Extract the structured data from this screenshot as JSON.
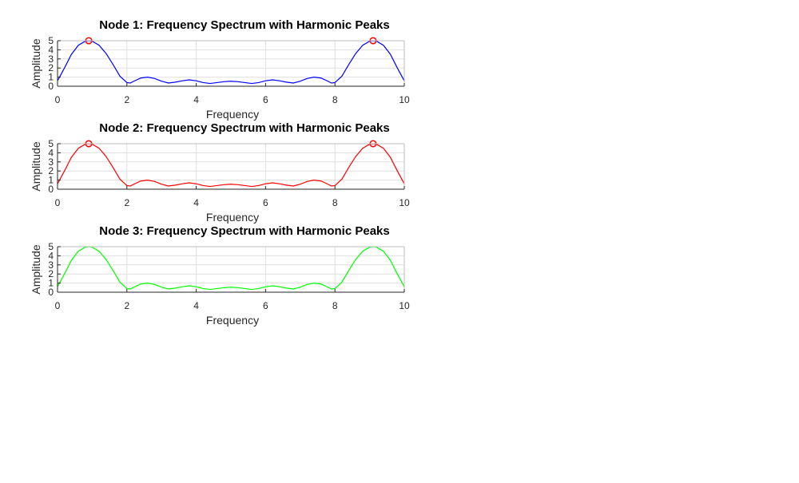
{
  "chart_data": [
    {
      "type": "line",
      "title": "Node 1: Frequency Spectrum with Harmonic Peaks",
      "xlabel": "Frequency",
      "ylabel": "Amplitude",
      "xlim": [
        0,
        10
      ],
      "ylim": [
        0,
        5
      ],
      "xticks": [
        "0",
        "2",
        "4",
        "6",
        "8",
        "10"
      ],
      "yticks": [
        "0",
        "1",
        "2",
        "3",
        "4",
        "5"
      ],
      "grid": true,
      "series": [
        {
          "color": "#0000ff",
          "x": [
            0,
            0.2,
            0.4,
            0.6,
            0.8,
            0.9,
            1.0,
            1.2,
            1.4,
            1.6,
            1.8,
            2.0,
            2.1,
            2.2,
            2.4,
            2.6,
            2.8,
            3.0,
            3.2,
            3.4,
            3.6,
            3.8,
            4.0,
            4.2,
            4.4,
            4.6,
            4.8,
            5.0,
            5.2,
            5.4,
            5.6,
            5.8,
            6.0,
            6.2,
            6.4,
            6.6,
            6.8,
            7.0,
            7.2,
            7.4,
            7.6,
            7.8,
            7.9,
            8.0,
            8.2,
            8.4,
            8.6,
            8.8,
            9.0,
            9.1,
            9.2,
            9.4,
            9.6,
            9.8,
            10.0
          ],
          "y": [
            0.6,
            2.0,
            3.5,
            4.5,
            4.95,
            5.0,
            4.95,
            4.5,
            3.6,
            2.4,
            1.1,
            0.4,
            0.35,
            0.55,
            0.9,
            1.0,
            0.85,
            0.55,
            0.35,
            0.45,
            0.6,
            0.7,
            0.6,
            0.4,
            0.3,
            0.4,
            0.5,
            0.55,
            0.5,
            0.4,
            0.3,
            0.4,
            0.6,
            0.7,
            0.6,
            0.45,
            0.35,
            0.55,
            0.85,
            1.0,
            0.9,
            0.55,
            0.35,
            0.4,
            1.1,
            2.4,
            3.6,
            4.5,
            4.95,
            5.0,
            4.95,
            4.5,
            3.5,
            2.0,
            0.6
          ]
        }
      ],
      "peaks": {
        "color": "#ff0000",
        "marker": "circle",
        "x": [
          0.9,
          9.1
        ],
        "y": [
          5.0,
          5.0
        ]
      }
    },
    {
      "type": "line",
      "title": "Node 2: Frequency Spectrum with Harmonic Peaks",
      "xlabel": "Frequency",
      "ylabel": "Amplitude",
      "xlim": [
        0,
        10
      ],
      "ylim": [
        0,
        5
      ],
      "xticks": [
        "0",
        "2",
        "4",
        "6",
        "8",
        "10"
      ],
      "yticks": [
        "0",
        "1",
        "2",
        "3",
        "4",
        "5"
      ],
      "grid": true,
      "series": [
        {
          "color": "#ff0000",
          "x": [
            0,
            0.2,
            0.4,
            0.6,
            0.8,
            0.9,
            1.0,
            1.2,
            1.4,
            1.6,
            1.8,
            2.0,
            2.1,
            2.2,
            2.4,
            2.6,
            2.8,
            3.0,
            3.2,
            3.4,
            3.6,
            3.8,
            4.0,
            4.2,
            4.4,
            4.6,
            4.8,
            5.0,
            5.2,
            5.4,
            5.6,
            5.8,
            6.0,
            6.2,
            6.4,
            6.6,
            6.8,
            7.0,
            7.2,
            7.4,
            7.6,
            7.8,
            7.9,
            8.0,
            8.2,
            8.4,
            8.6,
            8.8,
            9.0,
            9.1,
            9.2,
            9.4,
            9.6,
            9.8,
            10.0
          ],
          "y": [
            0.6,
            2.0,
            3.5,
            4.5,
            4.95,
            5.0,
            4.95,
            4.5,
            3.6,
            2.4,
            1.1,
            0.4,
            0.35,
            0.55,
            0.9,
            1.0,
            0.85,
            0.55,
            0.35,
            0.45,
            0.6,
            0.7,
            0.6,
            0.4,
            0.3,
            0.4,
            0.5,
            0.55,
            0.5,
            0.4,
            0.3,
            0.4,
            0.6,
            0.7,
            0.6,
            0.45,
            0.35,
            0.55,
            0.85,
            1.0,
            0.9,
            0.55,
            0.35,
            0.4,
            1.1,
            2.4,
            3.6,
            4.5,
            4.95,
            5.0,
            4.95,
            4.5,
            3.5,
            2.0,
            0.6
          ]
        }
      ],
      "peaks": {
        "color": "#ff0000",
        "marker": "circle",
        "x": [
          0.9,
          9.1
        ],
        "y": [
          5.0,
          5.0
        ]
      }
    },
    {
      "type": "line",
      "title": "Node 3: Frequency Spectrum with Harmonic Peaks",
      "xlabel": "Frequency",
      "ylabel": "Amplitude",
      "xlim": [
        0,
        10
      ],
      "ylim": [
        0,
        5
      ],
      "xticks": [
        "0",
        "2",
        "4",
        "6",
        "8",
        "10"
      ],
      "yticks": [
        "0",
        "1",
        "2",
        "3",
        "4",
        "5"
      ],
      "grid": true,
      "series": [
        {
          "color": "#00ff00",
          "x": [
            0,
            0.2,
            0.4,
            0.6,
            0.8,
            0.9,
            1.0,
            1.2,
            1.4,
            1.6,
            1.8,
            2.0,
            2.1,
            2.2,
            2.4,
            2.6,
            2.8,
            3.0,
            3.2,
            3.4,
            3.6,
            3.8,
            4.0,
            4.2,
            4.4,
            4.6,
            4.8,
            5.0,
            5.2,
            5.4,
            5.6,
            5.8,
            6.0,
            6.2,
            6.4,
            6.6,
            6.8,
            7.0,
            7.2,
            7.4,
            7.6,
            7.8,
            7.9,
            8.0,
            8.2,
            8.4,
            8.6,
            8.8,
            9.0,
            9.1,
            9.2,
            9.4,
            9.6,
            9.8,
            10.0
          ],
          "y": [
            0.6,
            2.0,
            3.5,
            4.5,
            4.95,
            5.0,
            4.95,
            4.5,
            3.6,
            2.4,
            1.1,
            0.4,
            0.35,
            0.55,
            0.9,
            1.0,
            0.85,
            0.55,
            0.35,
            0.45,
            0.6,
            0.7,
            0.6,
            0.4,
            0.3,
            0.4,
            0.5,
            0.55,
            0.5,
            0.4,
            0.3,
            0.4,
            0.6,
            0.7,
            0.6,
            0.45,
            0.35,
            0.55,
            0.85,
            1.0,
            0.9,
            0.55,
            0.35,
            0.4,
            1.1,
            2.4,
            3.6,
            4.5,
            4.95,
            5.0,
            4.95,
            4.5,
            3.5,
            2.0,
            0.6
          ]
        }
      ]
    }
  ]
}
